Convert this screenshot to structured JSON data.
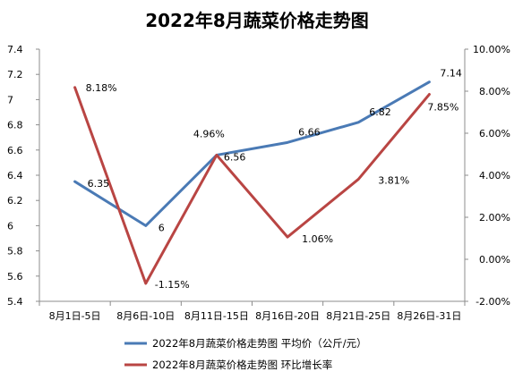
{
  "chart_data": {
    "type": "line",
    "title": "2022年8月蔬菜价格走势图",
    "categories": [
      "8月1日-5日",
      "8月6日-10日",
      "8月11日-15日",
      "8月16日-20日",
      "8月21日-25日",
      "8月26日-31日"
    ],
    "y_left": {
      "min": 5.4,
      "max": 7.4,
      "step": 0.2,
      "ticks": [
        "5.4",
        "5.6",
        "5.8",
        "6",
        "6.2",
        "6.4",
        "6.6",
        "6.8",
        "7",
        "7.2",
        "7.4"
      ]
    },
    "y_right": {
      "min": -2,
      "max": 10,
      "step": 2,
      "ticks": [
        "-2.00%",
        "0.00%",
        "2.00%",
        "4.00%",
        "6.00%",
        "8.00%",
        "10.00%"
      ]
    },
    "series": [
      {
        "name": "2022年8月蔬菜价格走势图 平均价（公斤/元）",
        "axis": "left",
        "color": "#4a7ab5",
        "values": [
          6.35,
          6,
          6.56,
          6.66,
          6.82,
          7.14
        ],
        "labels": [
          "6.35",
          "6",
          "6.56",
          "6.66",
          "6.82",
          "7.14"
        ]
      },
      {
        "name": "2022年8月蔬菜价格走势图 环比增长率",
        "axis": "right",
        "color": "#b94543",
        "values": [
          8.18,
          -1.15,
          4.96,
          1.06,
          3.81,
          7.85
        ],
        "labels": [
          "8.18%",
          "-1.15%",
          "4.96%",
          "1.06%",
          "3.81%",
          "7.85%"
        ]
      }
    ],
    "grid": false,
    "legend_position": "bottom"
  }
}
